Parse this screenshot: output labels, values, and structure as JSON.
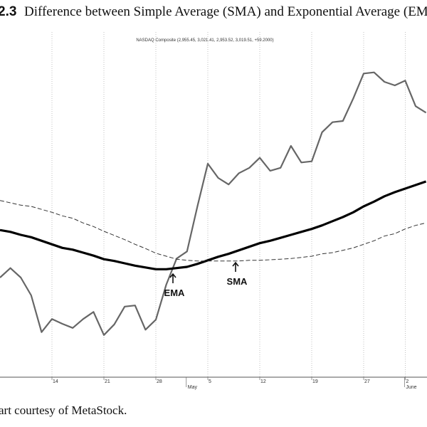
{
  "figure_number": "2.3",
  "figure_title": "Difference between Simple Average (SMA) and Exponential Average (EMA",
  "caption": "art courtesy of MetaStock.",
  "chart_data": {
    "type": "line",
    "header": "NASDAQ Composite (2,955.45, 3,021.41, 2,953.52, 3,019.51, +59.2000)",
    "categories": [
      null,
      null,
      null,
      null,
      null,
      "14",
      null,
      null,
      null,
      null,
      "21",
      null,
      null,
      null,
      null,
      "28",
      null,
      null,
      null,
      null,
      "5",
      null,
      null,
      null,
      null,
      "12",
      null,
      null,
      null,
      null,
      "19",
      null,
      null,
      null,
      null,
      "27",
      null,
      null,
      null,
      "2",
      null,
      null
    ],
    "months": [
      null,
      null,
      null,
      null,
      null,
      null,
      null,
      null,
      null,
      null,
      null,
      null,
      null,
      null,
      null,
      null,
      null,
      null,
      "May",
      null,
      null,
      null,
      null,
      null,
      null,
      null,
      null,
      null,
      null,
      null,
      null,
      null,
      null,
      null,
      null,
      null,
      null,
      null,
      null,
      "June",
      null,
      null
    ],
    "ylim": [
      2500,
      3100
    ],
    "grid": true,
    "series": [
      {
        "name": "NASDAQ Composite",
        "color": "#666666",
        "style": "solid",
        "values": [
          2680,
          2696,
          2680,
          2650,
          2588,
          2610,
          2602,
          2595,
          2610,
          2622,
          2583,
          2601,
          2631,
          2633,
          2592,
          2609,
          2668,
          2712,
          2724,
          2800,
          2872,
          2848,
          2837,
          2856,
          2865,
          2882,
          2860,
          2865,
          2902,
          2874,
          2876,
          2925,
          2942,
          2944,
          2982,
          3024,
          3026,
          3010,
          3004,
          3012,
          2969,
          2958
        ]
      },
      {
        "name": "EMA",
        "color": "#000000",
        "style": "thick",
        "values": [
          2760,
          2757,
          2752,
          2748,
          2742,
          2736,
          2730,
          2727,
          2722,
          2717,
          2711,
          2708,
          2704,
          2700,
          2697,
          2694,
          2694,
          2696,
          2698,
          2703,
          2709,
          2715,
          2720,
          2726,
          2732,
          2738,
          2742,
          2747,
          2752,
          2757,
          2762,
          2768,
          2775,
          2782,
          2790,
          2800,
          2808,
          2817,
          2824,
          2830,
          2836,
          2842
        ]
      },
      {
        "name": "SMA",
        "color": "#333333",
        "style": "dashed",
        "values": [
          2810,
          2806,
          2802,
          2800,
          2795,
          2790,
          2784,
          2780,
          2772,
          2766,
          2758,
          2751,
          2744,
          2736,
          2729,
          2721,
          2716,
          2711,
          2709,
          2708,
          2708,
          2708,
          2708,
          2708,
          2709,
          2709,
          2710,
          2711,
          2712,
          2714,
          2716,
          2720,
          2722,
          2726,
          2730,
          2736,
          2742,
          2750,
          2754,
          2762,
          2768,
          2772
        ]
      }
    ]
  }
}
